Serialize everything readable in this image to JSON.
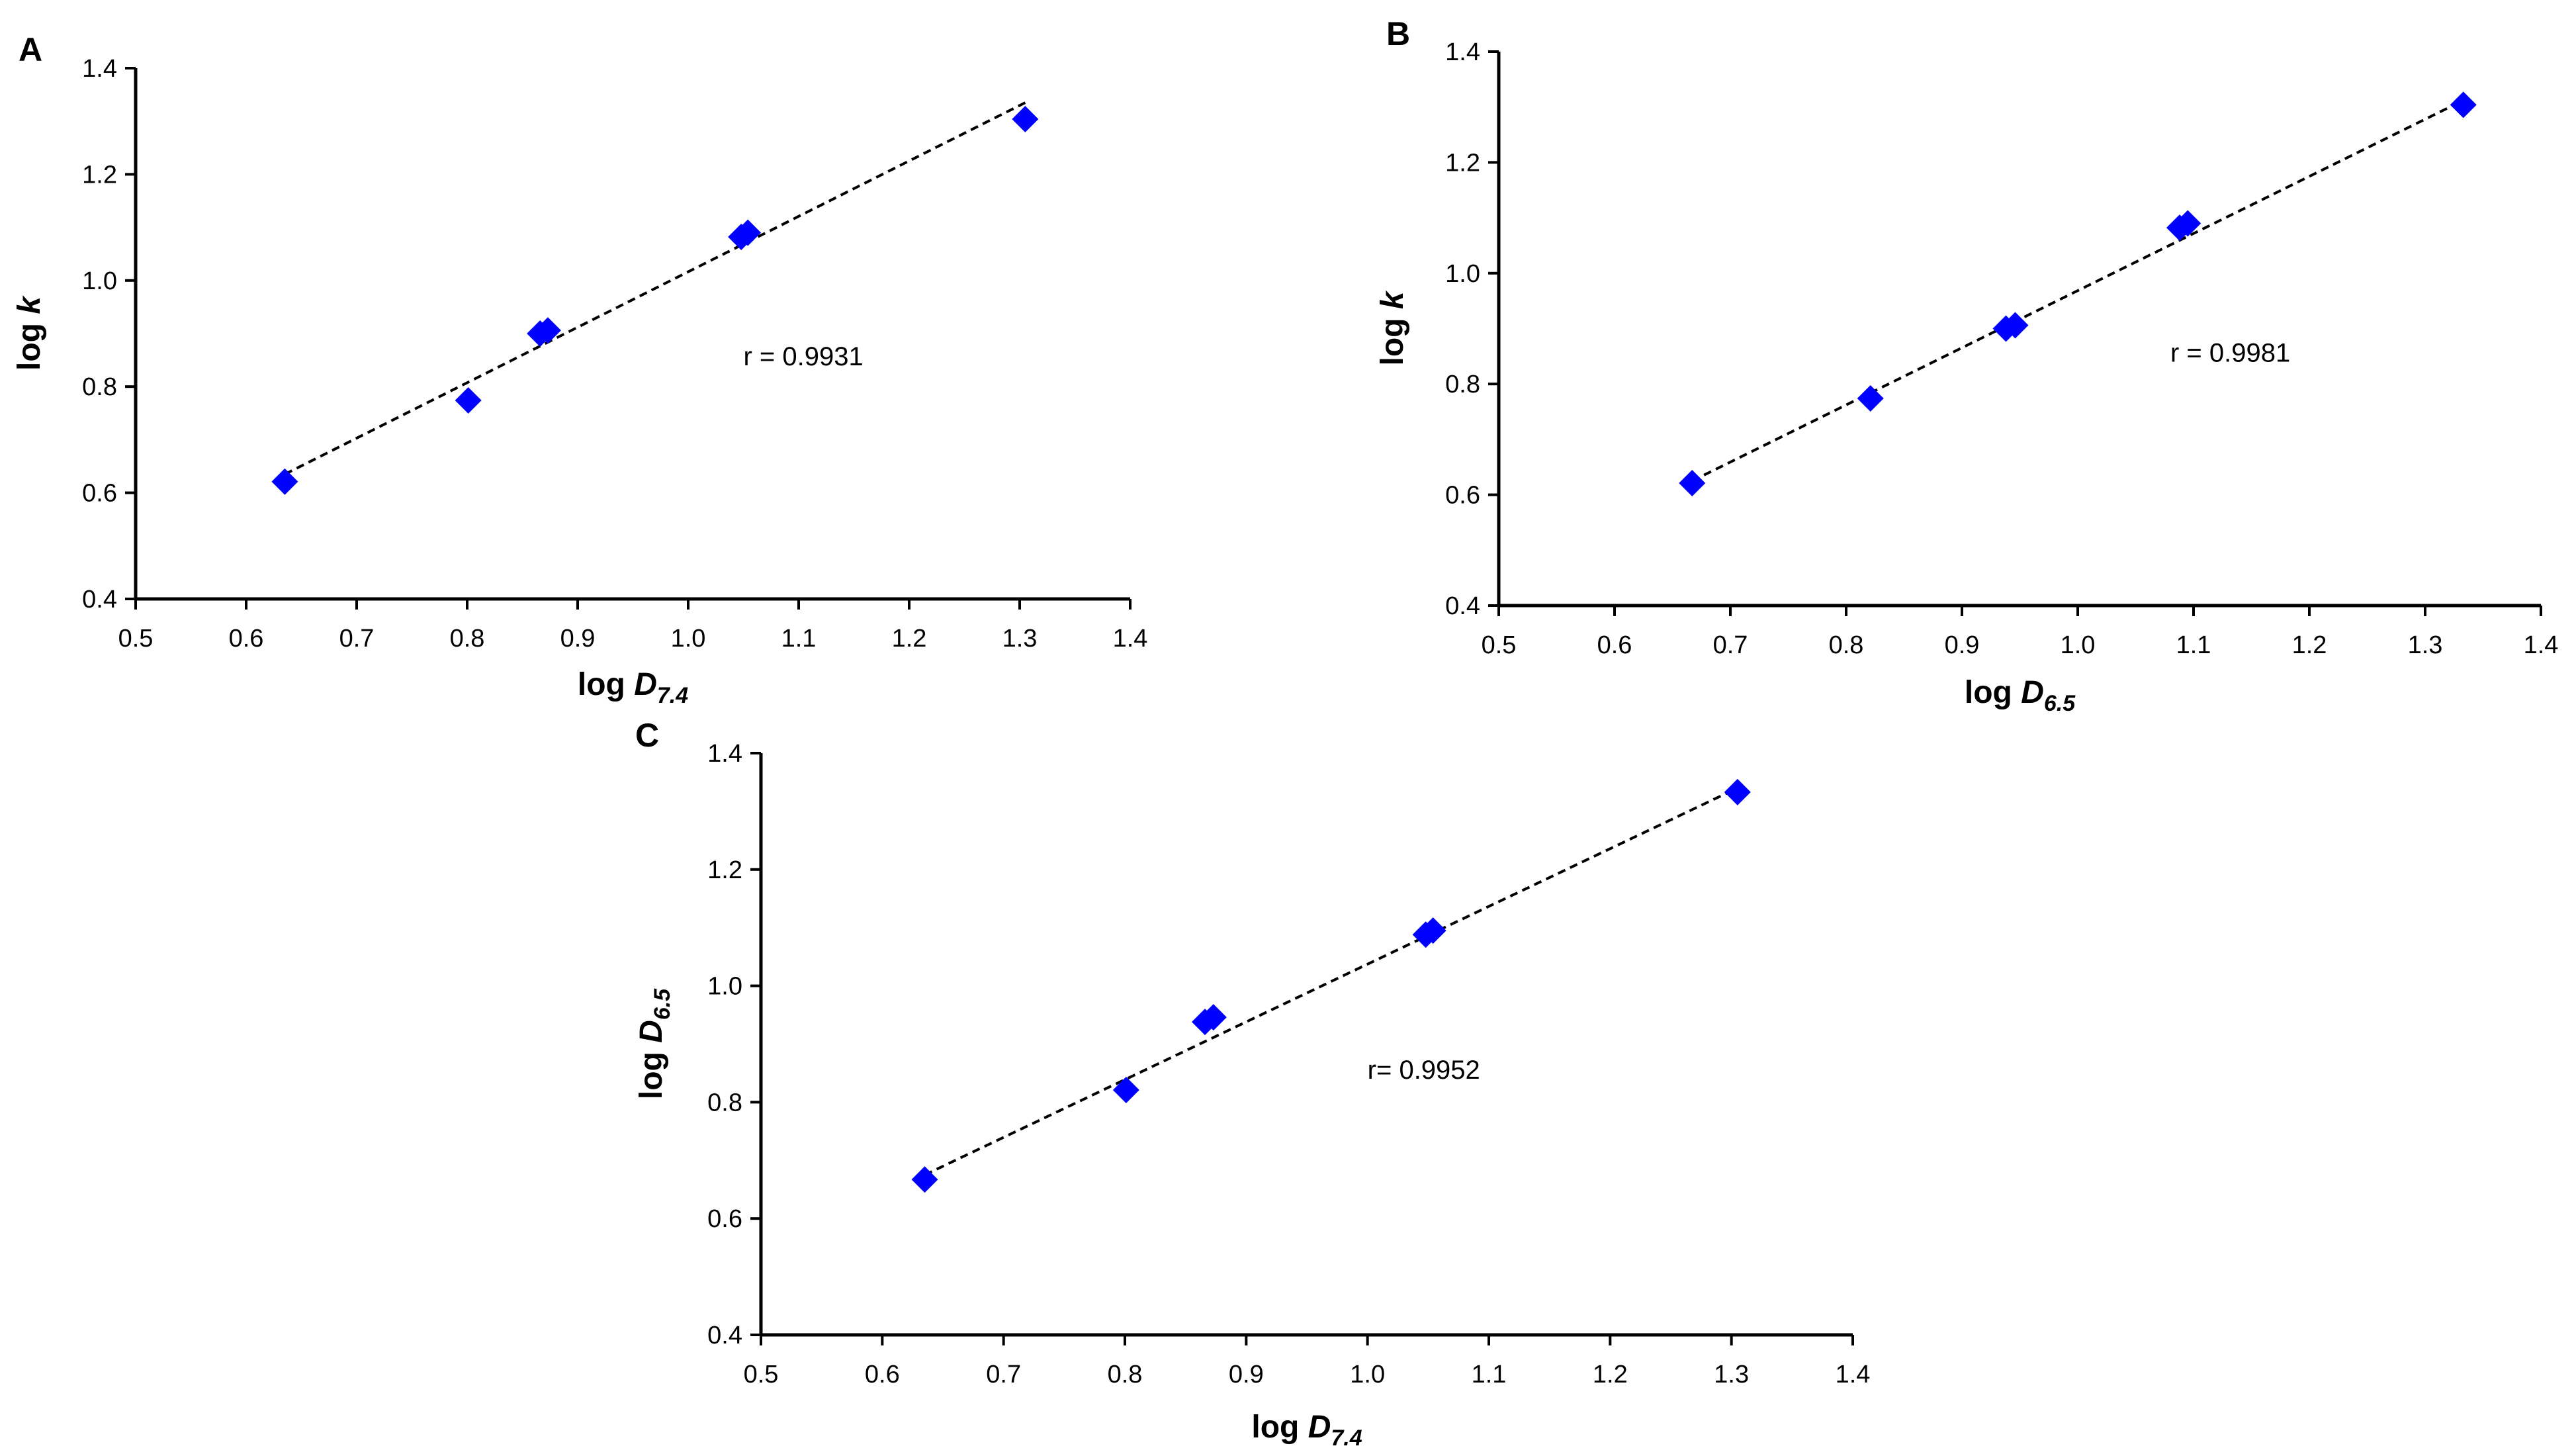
{
  "figure": {
    "marker_color": "#0000ff",
    "axis_color": "#000000",
    "trendline_color": "#000000"
  },
  "chart_data": [
    {
      "panel": "A",
      "type": "scatter",
      "title": "",
      "xlabel_main": "log ",
      "xlabel_var": "D",
      "xlabel_sub": "7.4",
      "ylabel_main": "log ",
      "ylabel_var": "k",
      "ylabel_sub": "",
      "xlim": [
        0.5,
        1.4
      ],
      "ylim": [
        0.4,
        1.4
      ],
      "xticks": [
        0.5,
        0.6,
        0.7,
        0.8,
        0.9,
        1.0,
        1.1,
        1.2,
        1.3,
        1.4
      ],
      "xtick_labels": [
        "0.5",
        "0.6",
        "0.7",
        "0.8",
        "0.9",
        "1.0",
        "1.1",
        "1.2",
        "1.3",
        "1.4"
      ],
      "yticks": [
        0.4,
        0.6,
        0.8,
        1.0,
        1.2,
        1.4
      ],
      "ytick_labels": [
        "0.4",
        "0.6",
        "0.8",
        "1.0",
        "1.2",
        "1.4"
      ],
      "x": [
        0.635,
        0.801,
        0.866,
        0.873,
        1.048,
        1.054,
        1.305
      ],
      "y": [
        0.621,
        0.774,
        0.9,
        0.906,
        1.082,
        1.09,
        1.304
      ],
      "trendline": {
        "x": [
          0.635,
          1.305
        ],
        "y": [
          0.635,
          1.335
        ]
      },
      "annotation": "r = 0.9931",
      "annotation_pos": [
        1.05,
        0.84
      ]
    },
    {
      "panel": "B",
      "type": "scatter",
      "title": "",
      "xlabel_main": "log ",
      "xlabel_var": "D",
      "xlabel_sub": "6.5",
      "ylabel_main": "log ",
      "ylabel_var": "k",
      "ylabel_sub": "",
      "xlim": [
        0.5,
        1.4
      ],
      "ylim": [
        0.4,
        1.4
      ],
      "xticks": [
        0.5,
        0.6,
        0.7,
        0.8,
        0.9,
        1.0,
        1.1,
        1.2,
        1.3,
        1.4
      ],
      "xtick_labels": [
        "0.5",
        "0.6",
        "0.7",
        "0.8",
        "0.9",
        "1.0",
        "1.1",
        "1.2",
        "1.3",
        "1.4"
      ],
      "yticks": [
        0.4,
        0.6,
        0.8,
        1.0,
        1.2,
        1.4
      ],
      "ytick_labels": [
        "0.4",
        "0.6",
        "0.8",
        "1.0",
        "1.2",
        "1.4"
      ],
      "x": [
        0.667,
        0.821,
        0.938,
        0.946,
        1.088,
        1.095,
        1.333
      ],
      "y": [
        0.621,
        0.774,
        0.9,
        0.906,
        1.082,
        1.09,
        1.304
      ],
      "trendline": {
        "x": [
          0.667,
          1.333
        ],
        "y": [
          0.625,
          1.312
        ]
      },
      "annotation": "r = 0.9981",
      "annotation_pos": [
        1.08,
        0.84
      ]
    },
    {
      "panel": "C",
      "type": "scatter",
      "title": "",
      "xlabel_main": "log ",
      "xlabel_var": "D",
      "xlabel_sub": "7.4",
      "ylabel_main": "log ",
      "ylabel_var": "D",
      "ylabel_sub": "6.5",
      "xlim": [
        0.5,
        1.4
      ],
      "ylim": [
        0.4,
        1.4
      ],
      "xticks": [
        0.5,
        0.6,
        0.7,
        0.8,
        0.9,
        1.0,
        1.1,
        1.2,
        1.3,
        1.4
      ],
      "xtick_labels": [
        "0.5",
        "0.6",
        "0.7",
        "0.8",
        "0.9",
        "1.0",
        "1.1",
        "1.2",
        "1.3",
        "1.4"
      ],
      "yticks": [
        0.4,
        0.6,
        0.8,
        1.0,
        1.2,
        1.4
      ],
      "ytick_labels": [
        "0.4",
        "0.6",
        "0.8",
        "1.0",
        "1.2",
        "1.4"
      ],
      "x": [
        0.635,
        0.801,
        0.866,
        0.873,
        1.048,
        1.054,
        1.305
      ],
      "y": [
        0.667,
        0.821,
        0.938,
        0.946,
        1.088,
        1.095,
        1.333
      ],
      "trendline": {
        "x": [
          0.635,
          1.305
        ],
        "y": [
          0.675,
          1.34
        ]
      },
      "annotation": "r= 0.9952",
      "annotation_pos": [
        1.0,
        0.84
      ]
    }
  ]
}
